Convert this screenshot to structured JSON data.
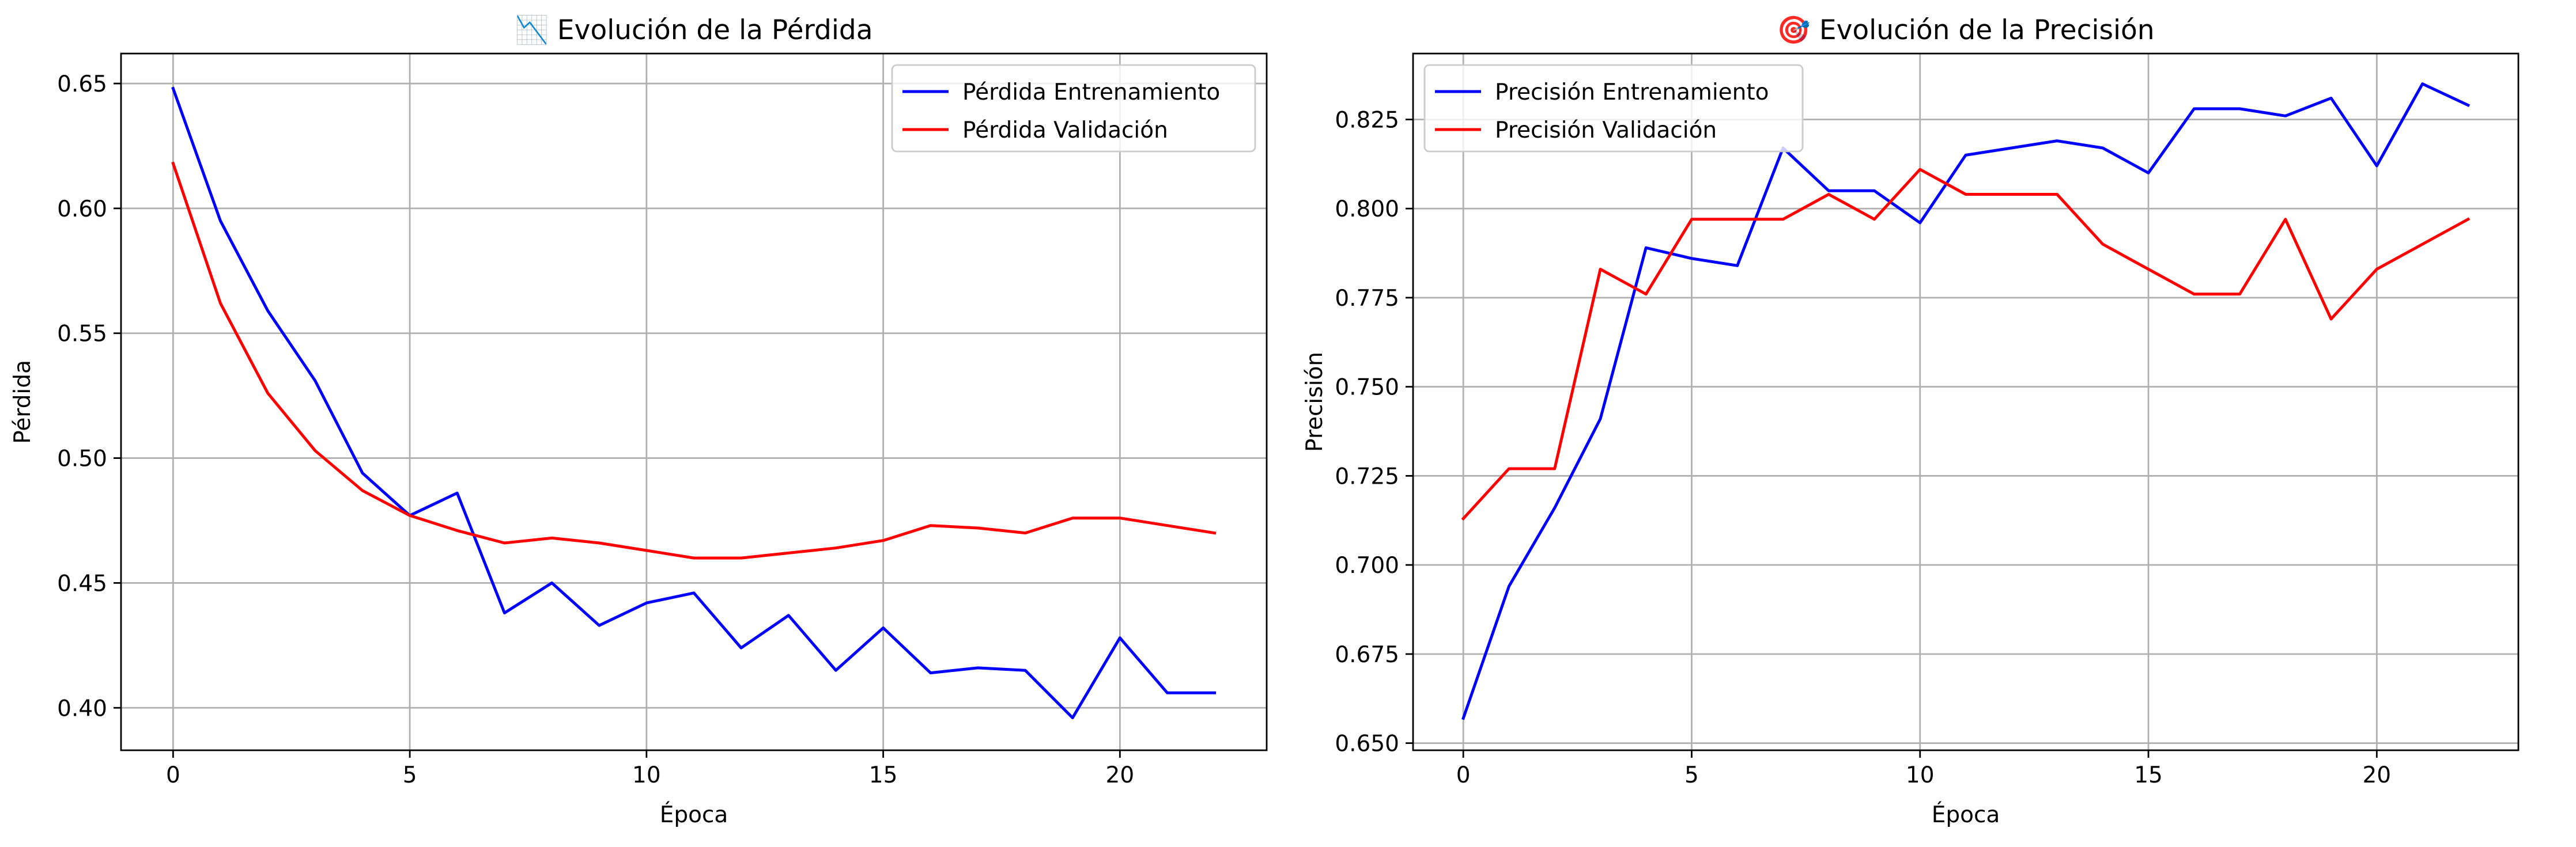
{
  "chart_data": [
    {
      "type": "line",
      "title": "📉 Evolución de la Pérdida",
      "xlabel": "Época",
      "ylabel": "Pérdida",
      "xlim": [
        -1.1,
        23.1
      ],
      "ylim": [
        0.383,
        0.662
      ],
      "xticks": [
        0,
        5,
        10,
        15,
        20
      ],
      "yticks": [
        0.4,
        0.45,
        0.5,
        0.55,
        0.6,
        0.65
      ],
      "ytick_labels": [
        "0.40",
        "0.45",
        "0.50",
        "0.55",
        "0.60",
        "0.65"
      ],
      "grid": true,
      "legend_position": "top-right",
      "x": [
        0,
        1,
        2,
        3,
        4,
        5,
        6,
        7,
        8,
        9,
        10,
        11,
        12,
        13,
        14,
        15,
        16,
        17,
        18,
        19,
        20,
        21,
        22
      ],
      "series": [
        {
          "name": "Pérdida Entrenamiento",
          "color": "#0000ff",
          "values": [
            0.648,
            0.595,
            0.559,
            0.531,
            0.494,
            0.477,
            0.486,
            0.438,
            0.45,
            0.433,
            0.442,
            0.446,
            0.424,
            0.437,
            0.415,
            0.432,
            0.414,
            0.416,
            0.415,
            0.396,
            0.428,
            0.406,
            0.406
          ]
        },
        {
          "name": "Pérdida Validación",
          "color": "#ff0000",
          "values": [
            0.618,
            0.562,
            0.526,
            0.503,
            0.487,
            0.477,
            0.471,
            0.466,
            0.468,
            0.466,
            0.463,
            0.46,
            0.46,
            0.462,
            0.464,
            0.467,
            0.473,
            0.472,
            0.47,
            0.476,
            0.476,
            0.473,
            0.47
          ]
        }
      ]
    },
    {
      "type": "line",
      "title": "🎯 Evolución de la Precisión",
      "xlabel": "Época",
      "ylabel": "Precisión",
      "xlim": [
        -1.1,
        23.1
      ],
      "ylim": [
        0.648,
        0.8435
      ],
      "xticks": [
        0,
        5,
        10,
        15,
        20
      ],
      "yticks": [
        0.65,
        0.675,
        0.7,
        0.725,
        0.75,
        0.775,
        0.8,
        0.825
      ],
      "ytick_labels": [
        "0.650",
        "0.675",
        "0.700",
        "0.725",
        "0.750",
        "0.775",
        "0.800",
        "0.825"
      ],
      "grid": true,
      "legend_position": "top-left",
      "x": [
        0,
        1,
        2,
        3,
        4,
        5,
        6,
        7,
        8,
        9,
        10,
        11,
        12,
        13,
        14,
        15,
        16,
        17,
        18,
        19,
        20,
        21,
        22
      ],
      "series": [
        {
          "name": "Precisión Entrenamiento",
          "color": "#0000ff",
          "values": [
            0.657,
            0.694,
            0.716,
            0.741,
            0.789,
            0.786,
            0.784,
            0.817,
            0.805,
            0.805,
            0.796,
            0.815,
            0.817,
            0.819,
            0.817,
            0.81,
            0.828,
            0.828,
            0.826,
            0.831,
            0.812,
            0.835,
            0.829
          ]
        },
        {
          "name": "Precisión Validación",
          "color": "#ff0000",
          "values": [
            0.713,
            0.727,
            0.727,
            0.783,
            0.776,
            0.797,
            0.797,
            0.797,
            0.804,
            0.797,
            0.811,
            0.804,
            0.804,
            0.804,
            0.79,
            0.783,
            0.776,
            0.776,
            0.797,
            0.769,
            0.783,
            0.79,
            0.797
          ]
        }
      ]
    }
  ]
}
